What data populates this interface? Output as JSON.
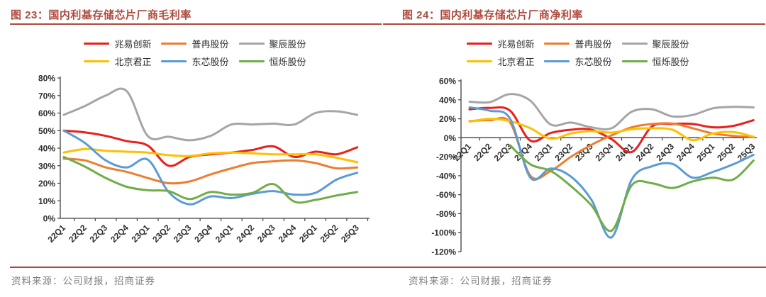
{
  "page": {
    "title_color": "#AF4A3E",
    "rule_color": "#B0493D",
    "axis_color": "#404040",
    "source_color": "#7F7F7F"
  },
  "chart_data": [
    {
      "type": "line",
      "figure_label": "图 23：",
      "title": "国内利基存储芯片厂商毛利率",
      "source": "资料来源：公司财报，招商证券",
      "categories": [
        "22Q1",
        "22Q2",
        "22Q3",
        "22Q4",
        "23Q1",
        "23Q2",
        "23Q3",
        "23Q4",
        "24Q1",
        "24Q2",
        "24Q3",
        "24Q4",
        "25Q1",
        "25Q2",
        "25Q3"
      ],
      "xlabel": "",
      "ylabel": "",
      "ylim": [
        0,
        80
      ],
      "ytick_step": 10,
      "ytick_format": "percent",
      "grid": false,
      "legend_position": "top",
      "smooth_lines": true,
      "series": [
        {
          "name": "兆易创新",
          "color": "#E8201E",
          "values": [
            50,
            49,
            47,
            44,
            41.5,
            30,
            35,
            36.5,
            37.5,
            39,
            41,
            35,
            38,
            36.5,
            40.5
          ]
        },
        {
          "name": "普冉股份",
          "color": "#ED7D31",
          "values": [
            34,
            33,
            29,
            26.5,
            23,
            20,
            21,
            25,
            28.5,
            31.5,
            32.5,
            33,
            31.5,
            28.5,
            29
          ]
        },
        {
          "name": "聚辰股份",
          "color": "#A5A5A5",
          "values": [
            59,
            64,
            70,
            72.5,
            47,
            46.5,
            44.5,
            47,
            53.5,
            53.5,
            54,
            53.5,
            60,
            61,
            59
          ]
        },
        {
          "name": "北京君正",
          "color": "#FFC000",
          "values": [
            37.5,
            39.5,
            38.5,
            38,
            37.5,
            36,
            35.5,
            37,
            37.5,
            37,
            36.5,
            36.5,
            36.5,
            34.5,
            32
          ]
        },
        {
          "name": "东芯股份",
          "color": "#5B9BD5",
          "values": [
            50,
            43,
            33,
            29,
            33.5,
            15,
            8,
            12.5,
            11.5,
            14,
            15.5,
            13.5,
            14.5,
            22,
            26
          ]
        },
        {
          "name": "恒烁股份",
          "color": "#70AD47",
          "values": [
            35,
            29.5,
            23,
            18,
            16,
            15.5,
            11,
            15,
            13.5,
            14.5,
            19.5,
            9.5,
            10.5,
            13,
            15
          ]
        }
      ]
    },
    {
      "type": "line",
      "figure_label": "图 24：",
      "title": "国内利基存储芯片厂商净利率",
      "source": "资料来源：公司财报，招商证券",
      "categories": [
        "22Q1",
        "22Q2",
        "22Q3",
        "22Q4",
        "23Q1",
        "23Q2",
        "23Q3",
        "23Q4",
        "24Q1",
        "24Q2",
        "24Q3",
        "24Q4",
        "25Q1",
        "25Q2",
        "25Q3"
      ],
      "xlabel": "",
      "ylabel": "",
      "ylim": [
        -120,
        60
      ],
      "ytick_step": 20,
      "ytick_format": "percent",
      "grid": false,
      "legend_position": "top",
      "smooth_lines": true,
      "series": [
        {
          "name": "兆易创新",
          "color": "#E8201E",
          "values": [
            30,
            31.5,
            28.5,
            -3,
            5,
            8.5,
            8.5,
            -1.5,
            -15,
            12,
            14.5,
            14.5,
            11,
            12.5,
            18.5
          ]
        },
        {
          "name": "普冉股份",
          "color": "#ED7D31",
          "values": [
            17.5,
            18.5,
            16,
            -40,
            -35,
            -20,
            -7.5,
            2.5,
            11,
            14.5,
            15,
            10,
            4.5,
            2,
            0.5
          ]
        },
        {
          "name": "聚辰股份",
          "color": "#A5A5A5",
          "values": [
            38,
            37.5,
            46,
            39,
            14,
            16,
            11,
            10,
            27.5,
            30,
            22.5,
            24,
            31,
            32.5,
            32
          ]
        },
        {
          "name": "北京君正",
          "color": "#FFC000",
          "values": [
            17,
            20,
            17.5,
            10,
            -1,
            4.5,
            7,
            5.5,
            9,
            10,
            8.5,
            -2.5,
            4.5,
            6,
            1
          ]
        },
        {
          "name": "东芯股份",
          "color": "#5B9BD5",
          "values": [
            32,
            28.5,
            20,
            -42,
            -32.5,
            -41,
            -65,
            -105,
            -44,
            -30,
            -27.5,
            -42,
            -36,
            -28,
            -18
          ]
        },
        {
          "name": "恒烁股份",
          "color": "#70AD47",
          "values": [
            null,
            null,
            -8,
            -28,
            -35,
            -51,
            -71,
            -98,
            -50,
            -48,
            -53,
            -46,
            -42,
            -44,
            -24
          ]
        }
      ]
    }
  ]
}
